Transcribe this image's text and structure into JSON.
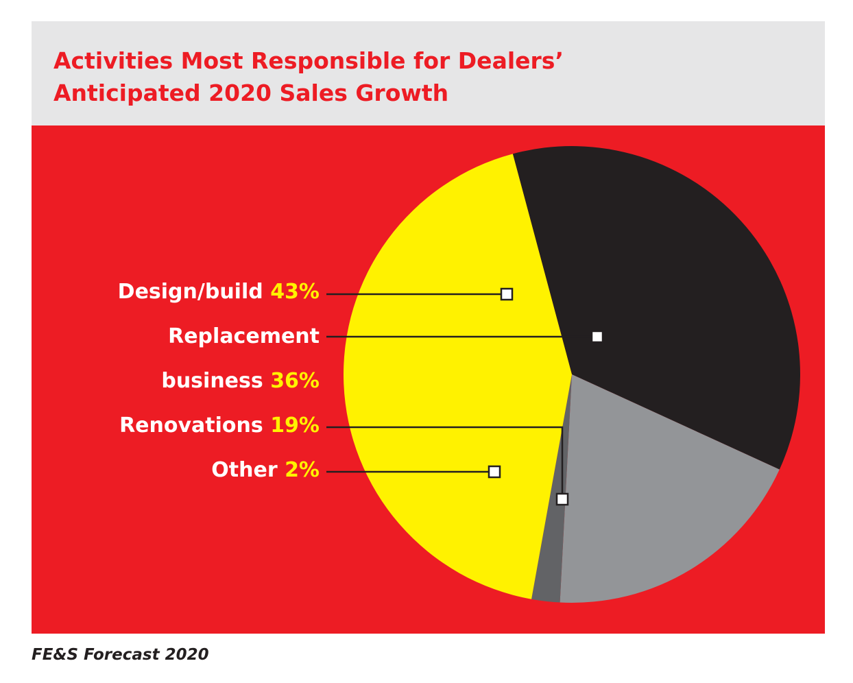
{
  "title_lines": [
    "Activities Most Responsible for Dealers’",
    "Anticipated 2020 Sales Growth"
  ],
  "source": "FE&S Forecast 2020",
  "colors": {
    "header_bg": "#e6e6e7",
    "panel_bg": "#ed1c24",
    "title": "#ed1c24",
    "label_text": "#ffffff",
    "percent_text": "#fff200"
  },
  "chart_data": {
    "type": "pie",
    "series": [
      {
        "name": "Design/build",
        "value": 43,
        "value_label": "43%",
        "color": "#fff200"
      },
      {
        "name": "Replacement business",
        "name_lines": [
          "Replacement",
          "business"
        ],
        "value": 36,
        "value_label": "36%",
        "color": "#231f20"
      },
      {
        "name": "Renovations",
        "value": 19,
        "value_label": "19%",
        "color": "#939598"
      },
      {
        "name": "Other",
        "value": 2,
        "value_label": "2%",
        "color": "#626366"
      }
    ],
    "legend": "left, with leader lines",
    "grid": false
  }
}
